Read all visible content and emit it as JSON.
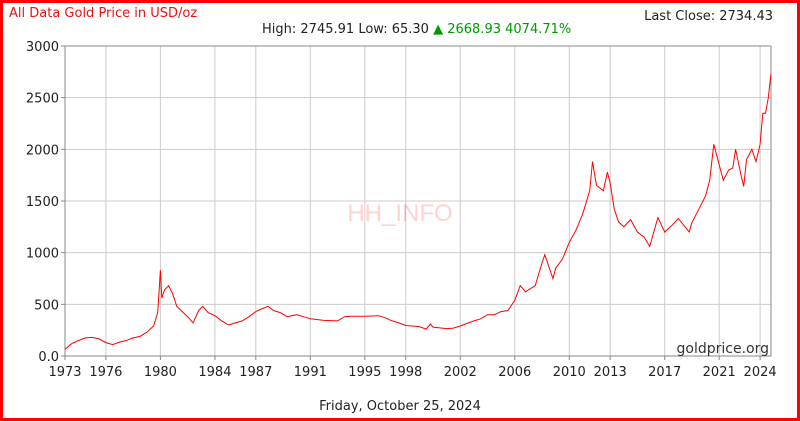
{
  "header": {
    "title": "All Data Gold Price in USD/oz",
    "last_close": "Last Close: 2734.43",
    "stats": {
      "high_label": "High:",
      "high": "2745.91",
      "low_label": "Low:",
      "low": "65.30",
      "change_arrow": "▲",
      "change": "2668.93",
      "change_pct": "4074.71%"
    }
  },
  "footer": {
    "date": "Friday, October 25, 2024"
  },
  "colors": {
    "line": "#ff0000",
    "grid": "#cccccc",
    "axis": "#888888",
    "up": "#009900",
    "frame": "#ff0000"
  },
  "chart_data": {
    "type": "line",
    "title": "All Data Gold Price in USD/oz",
    "watermark": "HH_INFO",
    "source": "goldprice.org",
    "xlabel": "",
    "ylabel": "",
    "xlim": [
      1973,
      2024.8
    ],
    "ylim": [
      0,
      3000
    ],
    "yticks": [
      0,
      500,
      1000,
      1500,
      2000,
      2500,
      3000
    ],
    "ytick_labels": [
      "0.0",
      "500",
      "1000",
      "1500",
      "2000",
      "2500",
      "3000"
    ],
    "xticks": [
      1973,
      1976,
      1980,
      1984,
      1987,
      1991,
      1995,
      1998,
      2002,
      2006,
      2010,
      2013,
      2017,
      2021,
      2024
    ],
    "grid": true,
    "series": [
      {
        "values": [
          [
            1973.0,
            65
          ],
          [
            1973.5,
            120
          ],
          [
            1974.0,
            150
          ],
          [
            1974.5,
            175
          ],
          [
            1975.0,
            180
          ],
          [
            1975.5,
            165
          ],
          [
            1976.0,
            130
          ],
          [
            1976.5,
            110
          ],
          [
            1977.0,
            135
          ],
          [
            1977.5,
            150
          ],
          [
            1978.0,
            175
          ],
          [
            1978.5,
            190
          ],
          [
            1979.0,
            230
          ],
          [
            1979.5,
            290
          ],
          [
            1979.8,
            420
          ],
          [
            1980.0,
            830
          ],
          [
            1980.1,
            560
          ],
          [
            1980.3,
            640
          ],
          [
            1980.6,
            680
          ],
          [
            1980.9,
            600
          ],
          [
            1981.2,
            480
          ],
          [
            1981.6,
            430
          ],
          [
            1982.0,
            380
          ],
          [
            1982.4,
            320
          ],
          [
            1982.8,
            440
          ],
          [
            1983.1,
            480
          ],
          [
            1983.5,
            420
          ],
          [
            1984.0,
            390
          ],
          [
            1984.5,
            340
          ],
          [
            1985.0,
            300
          ],
          [
            1985.5,
            320
          ],
          [
            1986.0,
            340
          ],
          [
            1986.5,
            380
          ],
          [
            1987.0,
            430
          ],
          [
            1987.5,
            460
          ],
          [
            1987.9,
            480
          ],
          [
            1988.3,
            440
          ],
          [
            1988.8,
            420
          ],
          [
            1989.3,
            380
          ],
          [
            1990.0,
            400
          ],
          [
            1990.5,
            380
          ],
          [
            1991.0,
            360
          ],
          [
            1992.0,
            345
          ],
          [
            1993.0,
            340
          ],
          [
            1993.5,
            380
          ],
          [
            1994.0,
            385
          ],
          [
            1995.0,
            385
          ],
          [
            1996.0,
            390
          ],
          [
            1996.5,
            370
          ],
          [
            1997.0,
            340
          ],
          [
            1997.5,
            320
          ],
          [
            1998.0,
            295
          ],
          [
            1998.5,
            290
          ],
          [
            1999.0,
            285
          ],
          [
            1999.5,
            260
          ],
          [
            1999.8,
            310
          ],
          [
            2000.0,
            280
          ],
          [
            2001.0,
            265
          ],
          [
            2001.5,
            270
          ],
          [
            2002.0,
            290
          ],
          [
            2002.5,
            315
          ],
          [
            2003.0,
            340
          ],
          [
            2003.5,
            360
          ],
          [
            2004.0,
            400
          ],
          [
            2004.5,
            400
          ],
          [
            2005.0,
            430
          ],
          [
            2005.5,
            440
          ],
          [
            2006.0,
            540
          ],
          [
            2006.4,
            680
          ],
          [
            2006.8,
            620
          ],
          [
            2007.0,
            640
          ],
          [
            2007.5,
            680
          ],
          [
            2008.0,
            900
          ],
          [
            2008.2,
            980
          ],
          [
            2008.8,
            750
          ],
          [
            2009.0,
            850
          ],
          [
            2009.5,
            940
          ],
          [
            2010.0,
            1100
          ],
          [
            2010.5,
            1220
          ],
          [
            2011.0,
            1380
          ],
          [
            2011.5,
            1600
          ],
          [
            2011.7,
            1880
          ],
          [
            2012.0,
            1650
          ],
          [
            2012.5,
            1600
          ],
          [
            2012.8,
            1780
          ],
          [
            2013.0,
            1670
          ],
          [
            2013.3,
            1420
          ],
          [
            2013.6,
            1300
          ],
          [
            2014.0,
            1250
          ],
          [
            2014.5,
            1320
          ],
          [
            2015.0,
            1200
          ],
          [
            2015.5,
            1150
          ],
          [
            2015.9,
            1060
          ],
          [
            2016.5,
            1340
          ],
          [
            2017.0,
            1200
          ],
          [
            2017.5,
            1260
          ],
          [
            2018.0,
            1330
          ],
          [
            2018.5,
            1250
          ],
          [
            2018.8,
            1200
          ],
          [
            2019.0,
            1290
          ],
          [
            2019.5,
            1420
          ],
          [
            2020.0,
            1550
          ],
          [
            2020.3,
            1700
          ],
          [
            2020.6,
            2050
          ],
          [
            2021.0,
            1850
          ],
          [
            2021.3,
            1700
          ],
          [
            2021.7,
            1800
          ],
          [
            2022.0,
            1820
          ],
          [
            2022.2,
            2000
          ],
          [
            2022.6,
            1750
          ],
          [
            2022.8,
            1640
          ],
          [
            2023.0,
            1900
          ],
          [
            2023.4,
            2000
          ],
          [
            2023.7,
            1880
          ],
          [
            2024.0,
            2050
          ],
          [
            2024.2,
            2350
          ],
          [
            2024.4,
            2350
          ],
          [
            2024.6,
            2500
          ],
          [
            2024.8,
            2734
          ]
        ]
      }
    ]
  }
}
